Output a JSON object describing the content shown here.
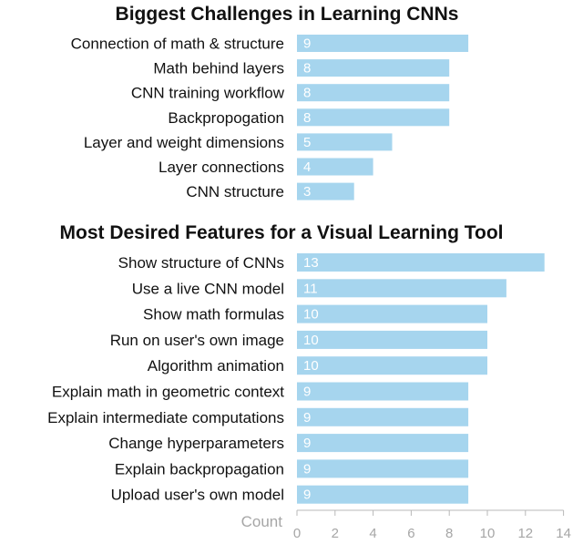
{
  "colors": {
    "bar": "#a6d5ee",
    "axis": "#b8b8b8",
    "text": "#111111",
    "tick_text": "#a6a6a6",
    "value_text": "#ffffff"
  },
  "chart_data": [
    {
      "type": "bar",
      "orientation": "horizontal",
      "title": "Biggest Challenges in Learning CNNs",
      "categories": [
        "Connection of math & structure",
        "Math behind layers",
        "CNN training workflow",
        "Backpropogation",
        "Layer and weight dimensions",
        "Layer connections",
        "CNN structure"
      ],
      "values": [
        9,
        8,
        8,
        8,
        5,
        4,
        3
      ],
      "xlim": [
        0,
        14
      ],
      "grid": false,
      "value_labels": true
    },
    {
      "type": "bar",
      "orientation": "horizontal",
      "title": "Most Desired Features for a Visual Learning Tool",
      "categories": [
        "Show structure of CNNs",
        "Use a live CNN model",
        "Show math formulas",
        "Run on user's own image",
        "Algorithm animation",
        "Explain math in geometric context",
        "Explain intermediate computations",
        "Change hyperparameters",
        "Explain backpropagation",
        "Upload user's own model"
      ],
      "values": [
        13,
        11,
        10,
        10,
        10,
        9,
        9,
        9,
        9,
        9
      ],
      "xlim": [
        0,
        14
      ],
      "xlabel": "Count",
      "xticks": [
        0,
        2,
        4,
        6,
        8,
        10,
        12,
        14
      ],
      "grid": false,
      "value_labels": true
    }
  ]
}
